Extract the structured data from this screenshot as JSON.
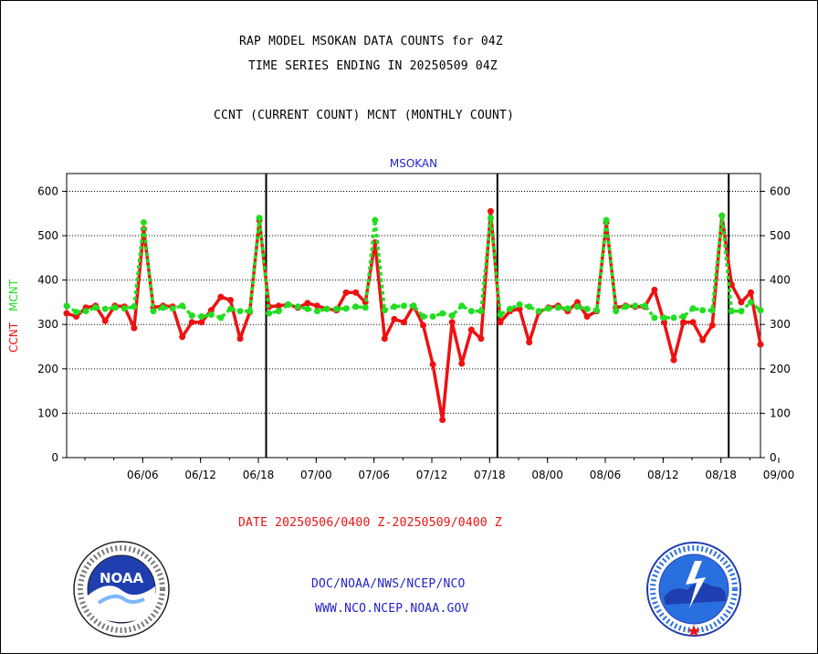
{
  "header": {
    "title_line1": "RAP MODEL MSOKAN DATA COUNTS for 04Z",
    "title_line2": "TIME SERIES ENDING IN 20250509 04Z",
    "subtitle": "CCNT (CURRENT COUNT) MCNT (MONTHLY COUNT)"
  },
  "footer": {
    "date_range": "DATE 20250506/0400 Z-20250509/0400 Z",
    "link1": "DOC/NOAA/NWS/NCEP/NCO",
    "link2": "WWW.NCO.NCEP.NOAA.GOV"
  },
  "logos": {
    "left": {
      "text": "NOAA",
      "ring_text": "NATIONAL OCEANIC AND ATMOSPHERIC ADMINISTRATION - U.S. DEPARTMENT OF COMMERCE"
    },
    "right": {
      "text": "",
      "ring_text": "NATIONAL WEATHER SERVICE"
    }
  },
  "chart_data": {
    "type": "line",
    "title": "MSOKAN",
    "ylabel_series": [
      "CCNT",
      "MCNT"
    ],
    "ylim": [
      0,
      640
    ],
    "yticks": [
      0,
      100,
      200,
      300,
      400,
      500,
      600
    ],
    "x_tick_labels": [
      "06/06",
      "06/12",
      "06/18",
      "07/00",
      "07/06",
      "07/12",
      "07/18",
      "08/00",
      "08/06",
      "08/12",
      "08/18",
      "09/00"
    ],
    "x_tick_hours": [
      6,
      12,
      18,
      24,
      30,
      36,
      42,
      48,
      54,
      60,
      66,
      72
    ],
    "xlim_hours": [
      0,
      72
    ],
    "day_boundaries_hours": [
      20.7,
      44.7,
      68.7
    ],
    "grid": true,
    "colors": {
      "ccnt": "#ee1111",
      "mcnt": "#22dd22",
      "title": "#2222cc",
      "axis": "#000000"
    },
    "series": [
      {
        "name": "CCNT",
        "x": [
          0,
          1,
          2,
          3,
          4,
          5,
          6,
          7,
          8,
          9,
          10,
          11,
          12,
          13,
          14,
          15,
          16,
          17,
          18,
          19,
          20,
          21,
          22,
          23,
          24,
          25,
          26,
          27,
          28,
          29,
          30,
          31,
          32,
          33,
          34,
          35,
          36,
          37,
          38,
          39,
          40,
          41,
          42,
          43,
          44,
          45,
          46,
          47,
          48,
          49,
          50,
          51,
          52,
          53,
          54,
          55,
          56,
          57,
          58,
          59,
          60,
          61,
          62,
          63,
          64,
          65,
          66,
          67,
          68,
          69,
          70,
          71,
          72
        ],
        "values": [
          325,
          318,
          338,
          342,
          308,
          342,
          340,
          292,
          515,
          338,
          342,
          340,
          272,
          305,
          305,
          332,
          362,
          355,
          268,
          328,
          535,
          340,
          342,
          345,
          338,
          348,
          342,
          335,
          332,
          372,
          372,
          350,
          485,
          268,
          312,
          305,
          342,
          298,
          210,
          85,
          305,
          212,
          288,
          268,
          555,
          305,
          330,
          335,
          260,
          328,
          338,
          342,
          330,
          350,
          318,
          330,
          530,
          338,
          342,
          340,
          340,
          378,
          305,
          220,
          305,
          305,
          265,
          298,
          545,
          390,
          350,
          372,
          255
        ]
      },
      {
        "name": "MCNT",
        "x": [
          0,
          1,
          2,
          3,
          4,
          5,
          6,
          7,
          8,
          9,
          10,
          11,
          12,
          13,
          14,
          15,
          16,
          17,
          18,
          19,
          20,
          21,
          22,
          23,
          24,
          25,
          26,
          27,
          28,
          29,
          30,
          31,
          32,
          33,
          34,
          35,
          36,
          37,
          38,
          39,
          40,
          41,
          42,
          43,
          44,
          45,
          46,
          47,
          48,
          49,
          50,
          51,
          52,
          53,
          54,
          55,
          56,
          57,
          58,
          59,
          60,
          61,
          62,
          63,
          64,
          65,
          66,
          67,
          68,
          69,
          70,
          71,
          72
        ],
        "values": [
          342,
          328,
          330,
          338,
          335,
          338,
          336,
          340,
          530,
          330,
          338,
          336,
          342,
          320,
          318,
          322,
          315,
          335,
          330,
          330,
          540,
          325,
          330,
          345,
          340,
          335,
          330,
          335,
          335,
          336,
          340,
          338,
          535,
          332,
          340,
          342,
          342,
          318,
          318,
          325,
          320,
          342,
          330,
          330,
          540,
          322,
          335,
          345,
          340,
          330,
          336,
          338,
          336,
          340,
          335,
          332,
          535,
          330,
          340,
          342,
          342,
          315,
          315,
          315,
          318,
          336,
          332,
          332,
          545,
          330,
          330,
          350,
          332
        ]
      }
    ]
  }
}
